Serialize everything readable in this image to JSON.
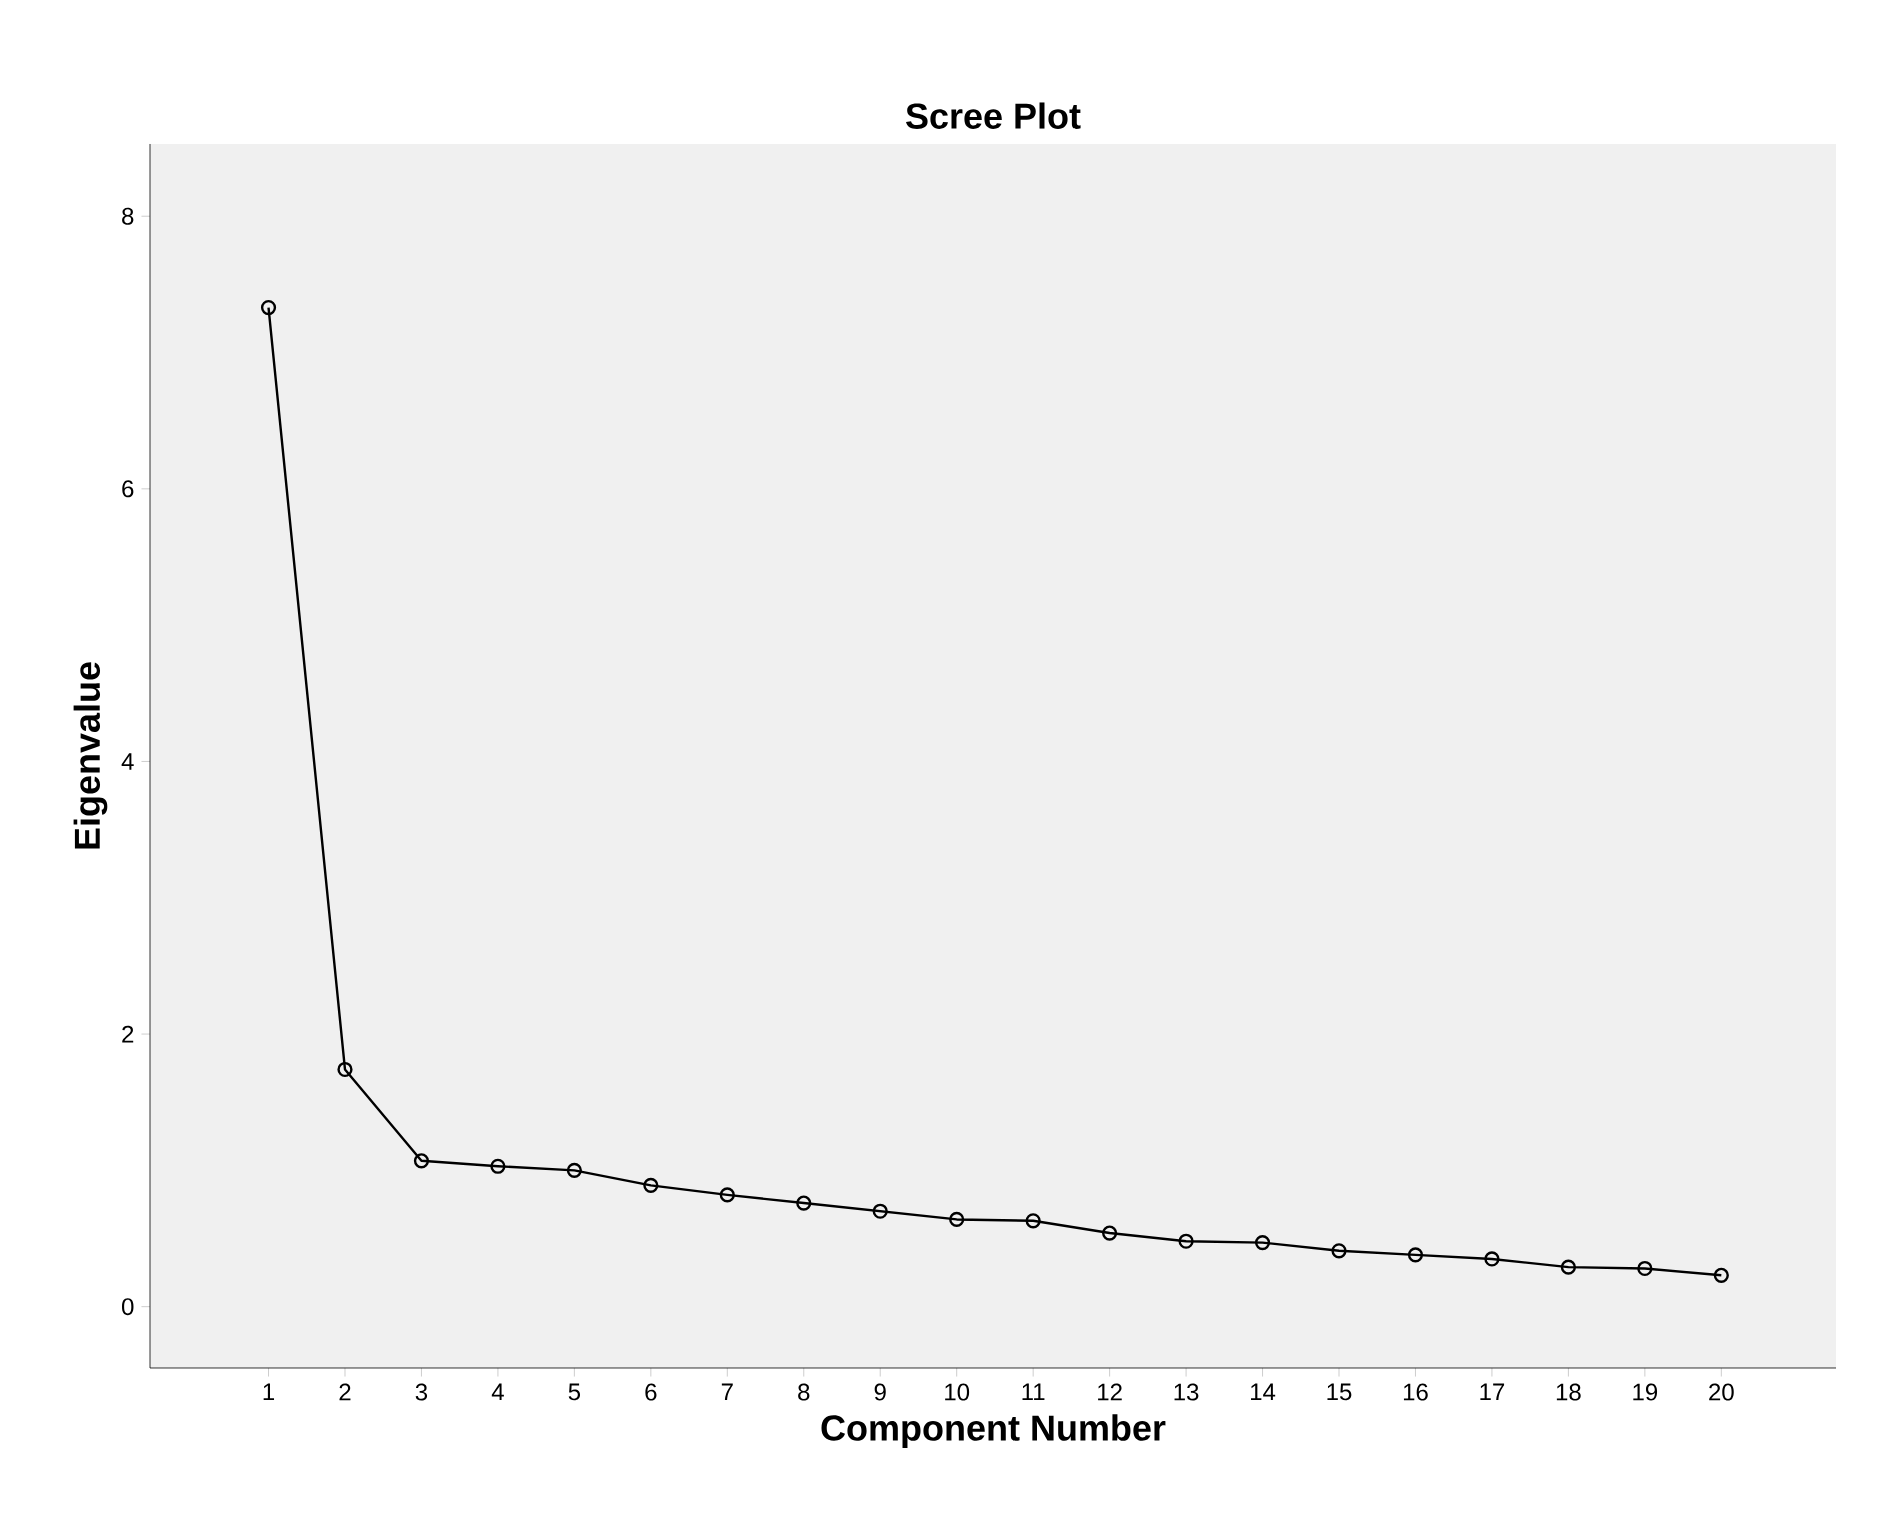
{
  "chart_data": {
    "type": "line",
    "title": "Scree Plot",
    "xlabel": "Component Number",
    "ylabel": "Eigenvalue",
    "x": [
      1,
      2,
      3,
      4,
      5,
      6,
      7,
      8,
      9,
      10,
      11,
      12,
      13,
      14,
      15,
      16,
      17,
      18,
      19,
      20
    ],
    "values": [
      7.33,
      1.74,
      1.07,
      1.03,
      1.0,
      0.89,
      0.82,
      0.76,
      0.7,
      0.64,
      0.63,
      0.54,
      0.48,
      0.47,
      0.41,
      0.38,
      0.35,
      0.29,
      0.28,
      0.23
    ],
    "color": "#000000",
    "marker": "circle",
    "line_style": "solid",
    "grid": false,
    "xlim": [
      -0.55,
      21.5
    ],
    "ylim": [
      -0.45,
      8.53
    ],
    "xticks": [
      1,
      2,
      3,
      4,
      5,
      6,
      7,
      8,
      9,
      10,
      11,
      12,
      13,
      14,
      15,
      16,
      17,
      18,
      19,
      20
    ],
    "yticks": [
      0,
      2,
      4,
      6,
      8
    ]
  }
}
